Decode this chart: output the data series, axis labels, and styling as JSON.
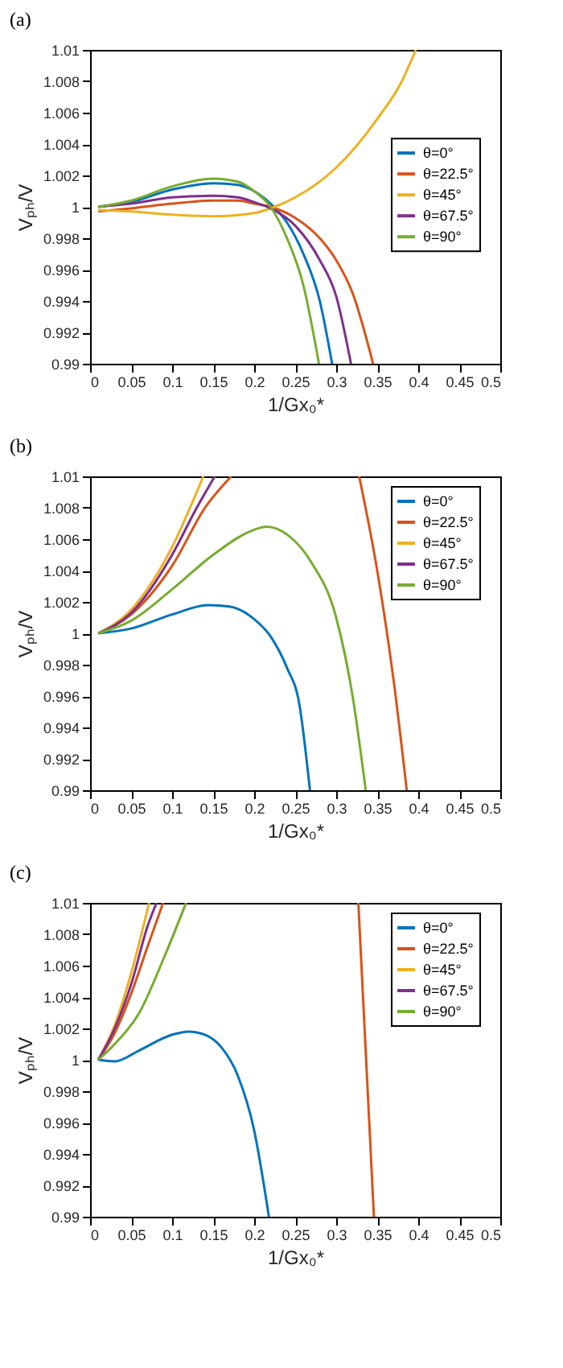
{
  "chart_data": [
    {
      "type": "line",
      "title": "(a)",
      "xlabel": "1/Gx₀*",
      "ylabel": "Vₚₕ/V",
      "xlim": [
        0,
        0.5
      ],
      "ylim": [
        0.99,
        1.01
      ],
      "xticks": [
        0,
        0.05,
        0.1,
        0.15,
        0.2,
        0.25,
        0.3,
        0.35,
        0.4,
        0.45,
        0.5
      ],
      "yticks": [
        0.99,
        0.992,
        0.994,
        0.996,
        0.998,
        1,
        1.002,
        1.004,
        1.006,
        1.008,
        1.01
      ],
      "grid": false,
      "legend": "right",
      "line_style": "solid",
      "marker": "none",
      "series": [
        {
          "name": "θ=0°",
          "color": "#0072bd",
          "x": [
            0.01,
            0.05,
            0.1,
            0.15,
            0.18,
            0.2,
            0.22,
            0.24,
            0.26,
            0.28,
            0.295
          ],
          "values": [
            1.0,
            1.0003,
            1.0011,
            1.0015,
            1.0014,
            1.001,
            1.0002,
            0.999,
            0.997,
            0.994,
            0.99
          ]
        },
        {
          "name": "θ=22.5°",
          "color": "#d95319",
          "x": [
            0.01,
            0.05,
            0.1,
            0.15,
            0.18,
            0.2,
            0.22,
            0.25,
            0.28,
            0.3,
            0.32,
            0.345
          ],
          "values": [
            0.9997,
            0.9999,
            1.0002,
            1.0004,
            1.0004,
            1.0002,
            1.0,
            0.9993,
            0.998,
            0.9966,
            0.9945,
            0.99
          ]
        },
        {
          "name": "θ=45°",
          "color": "#edb120",
          "x": [
            0.01,
            0.05,
            0.1,
            0.15,
            0.2,
            0.225,
            0.25,
            0.3,
            0.35,
            0.38,
            0.397
          ],
          "values": [
            0.9998,
            0.9997,
            0.9995,
            0.9994,
            0.9996,
            1.0,
            1.0006,
            1.0025,
            1.0056,
            1.008,
            1.01
          ]
        },
        {
          "name": "θ=67.5°",
          "color": "#7e2f8e",
          "x": [
            0.01,
            0.05,
            0.1,
            0.15,
            0.18,
            0.2,
            0.22,
            0.25,
            0.28,
            0.3,
            0.318
          ],
          "values": [
            1.0,
            1.0002,
            1.0006,
            1.0007,
            1.0006,
            1.0003,
            0.9999,
            0.9988,
            0.9966,
            0.9943,
            0.99
          ]
        },
        {
          "name": "θ=90°",
          "color": "#77ac30",
          "x": [
            0.01,
            0.05,
            0.1,
            0.15,
            0.18,
            0.2,
            0.22,
            0.24,
            0.26,
            0.279
          ],
          "values": [
            1.0,
            1.0004,
            1.0013,
            1.0018,
            1.0016,
            1.001,
            1.0,
            0.998,
            0.995,
            0.99
          ]
        }
      ]
    },
    {
      "type": "line",
      "title": "(b)",
      "xlabel": "1/Gx₀*",
      "ylabel": "Vₚₕ/V",
      "xlim": [
        0,
        0.5
      ],
      "ylim": [
        0.99,
        1.01
      ],
      "xticks": [
        0,
        0.05,
        0.1,
        0.15,
        0.2,
        0.25,
        0.3,
        0.35,
        0.4,
        0.45,
        0.5
      ],
      "yticks": [
        0.99,
        0.992,
        0.994,
        0.996,
        0.998,
        1,
        1.002,
        1.004,
        1.006,
        1.008,
        1.01
      ],
      "grid": false,
      "legend": "top right",
      "line_style": "solid",
      "marker": "none",
      "series": [
        {
          "name": "θ=0°",
          "color": "#0072bd",
          "x": [
            0.01,
            0.05,
            0.1,
            0.145,
            0.17,
            0.2,
            0.22,
            0.24,
            0.255,
            0.268
          ],
          "values": [
            1.0,
            1.0003,
            1.0012,
            1.0018,
            1.0017,
            1.0009,
            0.9998,
            0.9978,
            0.9955,
            0.99
          ]
        },
        {
          "name": "θ=22.5°",
          "color": "#d95319",
          "x": [
            0.01,
            0.05,
            0.1,
            0.14,
            0.172,
            0.25,
            0.328,
            0.35,
            0.37,
            0.386
          ],
          "values": [
            1.0,
            1.0012,
            1.0043,
            1.008,
            1.01,
            null,
            1.01,
            1.004,
            0.997,
            0.99
          ]
        },
        {
          "name": "θ=45°",
          "color": "#edb120",
          "x": [
            0.01,
            0.05,
            0.1,
            0.13,
            0.138
          ],
          "values": [
            1.0,
            1.0015,
            1.0055,
            1.009,
            1.01
          ]
        },
        {
          "name": "θ=67.5°",
          "color": "#7e2f8e",
          "x": [
            0.01,
            0.05,
            0.1,
            0.13,
            0.152
          ],
          "values": [
            1.0,
            1.0013,
            1.005,
            1.008,
            1.01
          ]
        },
        {
          "name": "θ=90°",
          "color": "#77ac30",
          "x": [
            0.01,
            0.05,
            0.1,
            0.15,
            0.2,
            0.215,
            0.24,
            0.27,
            0.3,
            0.32,
            0.336
          ],
          "values": [
            1.0,
            1.0008,
            1.0028,
            1.005,
            1.0066,
            1.0068,
            1.0063,
            1.0045,
            1.001,
            0.996,
            0.99
          ]
        }
      ]
    },
    {
      "type": "line",
      "title": "(c)",
      "xlabel": "1/Gx₀*",
      "ylabel": "Vₚₕ/V",
      "xlim": [
        0,
        0.5
      ],
      "ylim": [
        0.99,
        1.01
      ],
      "xticks": [
        0,
        0.05,
        0.1,
        0.15,
        0.2,
        0.25,
        0.3,
        0.35,
        0.4,
        0.45,
        0.5
      ],
      "yticks": [
        0.99,
        0.992,
        0.994,
        0.996,
        0.998,
        1,
        1.002,
        1.004,
        1.006,
        1.008,
        1.01
      ],
      "grid": false,
      "legend": "top right",
      "line_style": "solid",
      "marker": "none",
      "series": [
        {
          "name": "θ=0°",
          "color": "#0072bd",
          "x": [
            0.01,
            0.03,
            0.06,
            0.1,
            0.12,
            0.14,
            0.16,
            0.18,
            0.2,
            0.218
          ],
          "values": [
            1.0,
            0.9999,
            1.0006,
            1.0016,
            1.0018,
            1.0016,
            1.0008,
            0.999,
            0.9955,
            0.99
          ]
        },
        {
          "name": "θ=22.5°",
          "color": "#d95319",
          "x": [
            0.01,
            0.03,
            0.05,
            0.07,
            0.089,
            0.2,
            0.327,
            0.346
          ],
          "values": [
            1.0,
            1.0017,
            1.0042,
            1.0072,
            1.01,
            null,
            1.01,
            0.99
          ]
        },
        {
          "name": "θ=45°",
          "color": "#edb120",
          "x": [
            0.01,
            0.03,
            0.05,
            0.072
          ],
          "values": [
            1.0,
            1.0022,
            1.0055,
            1.01
          ]
        },
        {
          "name": "θ=67.5°",
          "color": "#7e2f8e",
          "x": [
            0.01,
            0.03,
            0.05,
            0.07,
            0.081
          ],
          "values": [
            1.0,
            1.002,
            1.0048,
            1.0085,
            1.01
          ]
        },
        {
          "name": "θ=90°",
          "color": "#77ac30",
          "x": [
            0.01,
            0.03,
            0.06,
            0.09,
            0.117
          ],
          "values": [
            1.0,
            1.001,
            1.003,
            1.0065,
            1.01
          ]
        }
      ]
    }
  ]
}
